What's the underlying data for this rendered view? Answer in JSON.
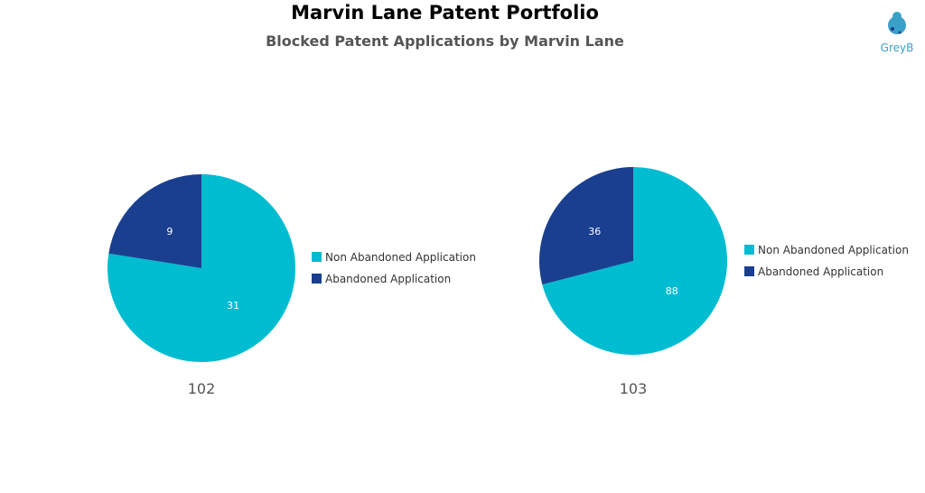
{
  "title": "Marvin Lane Patent Portfolio",
  "subtitle": "Blocked Patent Applications by Marvin Lane",
  "logo": {
    "text": "GreyB",
    "icon": "greyb-logo-icon",
    "color": "#3aa1c8"
  },
  "colors": {
    "non_abandoned": "#00bcd0",
    "abandoned": "#1a3f8f"
  },
  "chart_data": [
    {
      "type": "pie",
      "caption": "102",
      "slices": [
        {
          "label": "Non Abandoned Application",
          "value": 31,
          "color": "#00bcd0"
        },
        {
          "label": "Abandoned Application",
          "value": 9,
          "color": "#1a3f8f"
        }
      ],
      "legend": [
        "Non Abandoned Application",
        "Abandoned Application"
      ],
      "legend_placement": "right"
    },
    {
      "type": "pie",
      "caption": "103",
      "slices": [
        {
          "label": "Non Abandoned Application",
          "value": 88,
          "color": "#00bcd0"
        },
        {
          "label": "Abandoned Application",
          "value": 36,
          "color": "#1a3f8f"
        }
      ],
      "legend": [
        "Non Abandoned Application",
        "Abandoned Application"
      ],
      "legend_placement": "right"
    }
  ]
}
